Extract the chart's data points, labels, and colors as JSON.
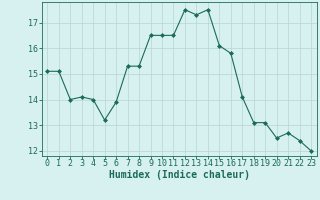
{
  "x": [
    0,
    1,
    2,
    3,
    4,
    5,
    6,
    7,
    8,
    9,
    10,
    11,
    12,
    13,
    14,
    15,
    16,
    17,
    18,
    19,
    20,
    21,
    22,
    23
  ],
  "y": [
    15.1,
    15.1,
    14.0,
    14.1,
    14.0,
    13.2,
    13.9,
    15.3,
    15.3,
    16.5,
    16.5,
    16.5,
    17.5,
    17.3,
    17.5,
    16.1,
    15.8,
    14.1,
    13.1,
    13.1,
    12.5,
    12.7,
    12.4,
    12.0
  ],
  "line_color": "#1a6b5a",
  "marker": "D",
  "marker_size": 2,
  "bg_color": "#d7f0f0",
  "grid_color": "#b8d4d4",
  "xlabel": "Humidex (Indice chaleur)",
  "ylim": [
    11.8,
    17.8
  ],
  "yticks": [
    12,
    13,
    14,
    15,
    16,
    17
  ],
  "xticks": [
    0,
    1,
    2,
    3,
    4,
    5,
    6,
    7,
    8,
    9,
    10,
    11,
    12,
    13,
    14,
    15,
    16,
    17,
    18,
    19,
    20,
    21,
    22,
    23
  ],
  "xlabel_fontsize": 7,
  "tick_fontsize": 6,
  "tick_color": "#1a6b5a"
}
